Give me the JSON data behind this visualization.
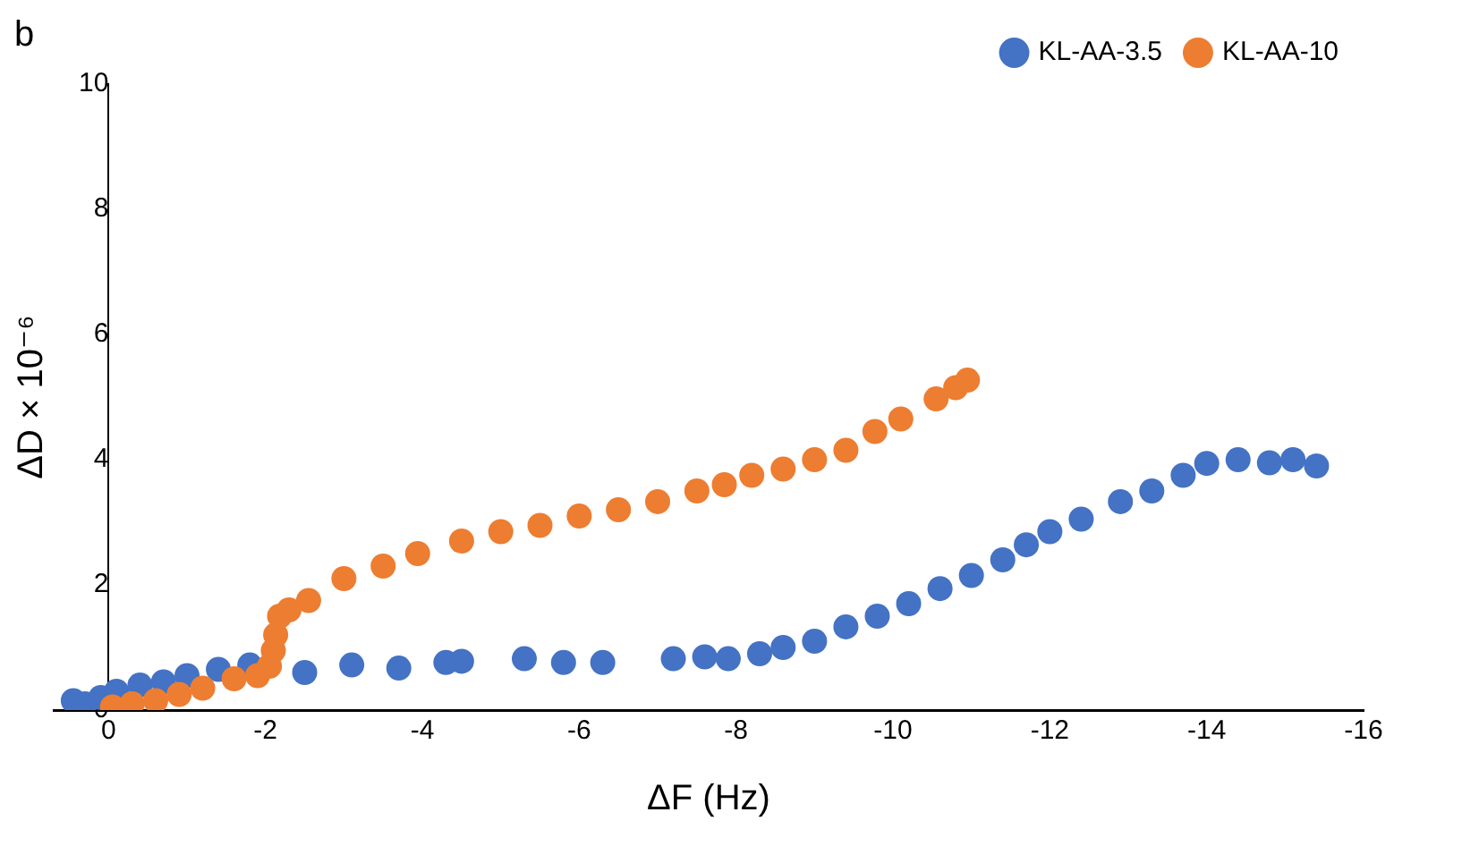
{
  "chart_data": {
    "type": "scatter",
    "xlabel": "ΔF (Hz)",
    "ylabel": "ΔD × 10⁻⁶",
    "annotations": [
      "b"
    ],
    "xlim": [
      0.7,
      -16
    ],
    "xticks": [
      0,
      -2,
      -4,
      -6,
      -8,
      -10,
      -12,
      -14,
      -16
    ],
    "ylim": [
      0,
      10
    ],
    "yticks": [
      0,
      2,
      4,
      6,
      8,
      10
    ],
    "grid": false,
    "legend": "top right",
    "marker": "circle",
    "series": [
      {
        "name": "KL-AA-3.5",
        "color": "#4472c4",
        "x": [
          0.45,
          0.3,
          0.1,
          -0.1,
          -0.4,
          -0.7,
          -1.0,
          -1.4,
          -1.8,
          -2.5,
          -3.1,
          -3.7,
          -4.3,
          -4.5,
          -5.3,
          -5.8,
          -6.3,
          -7.2,
          -7.6,
          -7.9,
          -8.3,
          -8.6,
          -9.0,
          -9.4,
          -9.8,
          -10.2,
          -10.6,
          -11.0,
          -11.4,
          -11.7,
          -12.0,
          -12.4,
          -12.9,
          -13.3,
          -13.7,
          -14.0,
          -14.4,
          -14.8,
          -15.1,
          -15.4
        ],
        "values": [
          0.15,
          0.1,
          0.2,
          0.3,
          0.4,
          0.45,
          0.55,
          0.65,
          0.72,
          0.6,
          0.72,
          0.67,
          0.76,
          0.78,
          0.82,
          0.76,
          0.76,
          0.82,
          0.85,
          0.82,
          0.9,
          1.0,
          1.1,
          1.33,
          1.5,
          1.7,
          1.94,
          2.15,
          2.4,
          2.64,
          2.85,
          3.05,
          3.33,
          3.5,
          3.75,
          3.94,
          4.0,
          3.95,
          4.0,
          3.9
        ]
      },
      {
        "name": "KL-AA-10",
        "color": "#ed7d31",
        "x": [
          -0.05,
          -0.3,
          -0.6,
          -0.9,
          -1.2,
          -1.6,
          -1.9,
          -2.05,
          -2.1,
          -2.13,
          -2.18,
          -2.3,
          -2.55,
          -3.0,
          -3.5,
          -3.94,
          -4.5,
          -5.0,
          -5.5,
          -6.0,
          -6.5,
          -7.0,
          -7.5,
          -7.85,
          -8.2,
          -8.6,
          -9.0,
          -9.4,
          -9.77,
          -10.1,
          -10.55,
          -10.8,
          -10.95
        ],
        "values": [
          0.05,
          0.1,
          0.15,
          0.25,
          0.35,
          0.5,
          0.55,
          0.7,
          0.95,
          1.2,
          1.5,
          1.6,
          1.75,
          2.1,
          2.3,
          2.5,
          2.7,
          2.85,
          2.95,
          3.1,
          3.2,
          3.33,
          3.5,
          3.6,
          3.75,
          3.85,
          4.0,
          4.15,
          4.45,
          4.65,
          4.97,
          5.15,
          5.27
        ]
      }
    ]
  }
}
